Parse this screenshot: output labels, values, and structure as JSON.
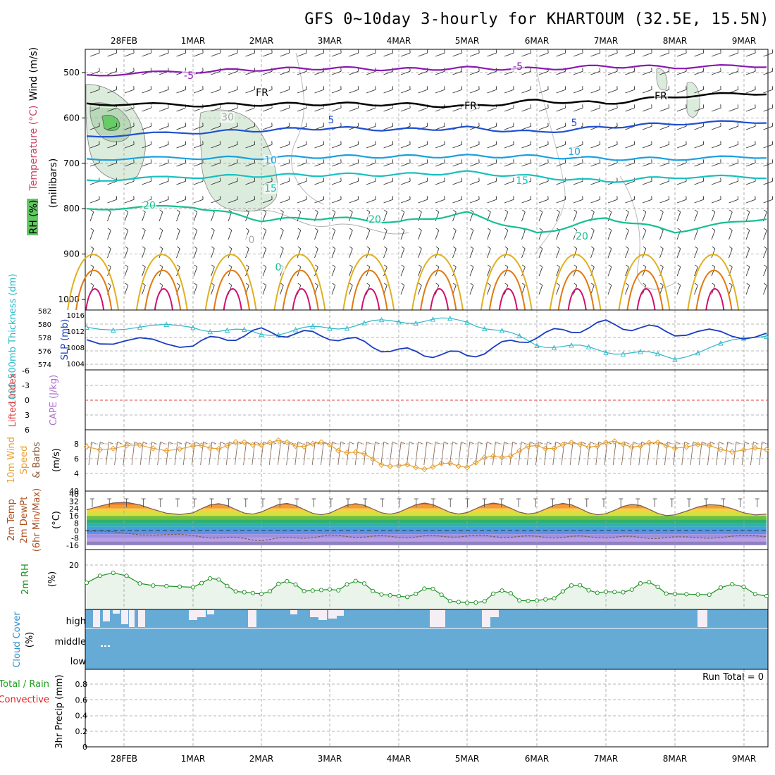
{
  "title": "GFS 0~10day 3-hourly for KHARTOUM (32.5E, 15.5N)",
  "dates": [
    "28FEB",
    "1MAR",
    "2MAR",
    "3MAR",
    "4MAR",
    "5MAR",
    "6MAR",
    "7MAR",
    "8MAR",
    "9MAR"
  ],
  "colors": {
    "panel_border": "#000000",
    "grid": "#a0a0a0",
    "isotherm_neg": "#8a1ab0",
    "isotherm_freeze": "#000000",
    "isotherm_5": "#1f4fd0",
    "isotherm_10": "#1aa0e0",
    "isotherm_15": "#19c0c0",
    "isotherm_20": "#16c090",
    "isotherm_25": "#e0b020",
    "isotherm_30": "#e07a10",
    "isotherm_35": "#d01070",
    "rh_shade": "#cde6cd",
    "thickness": "#2cb8c8",
    "slp": "#1a3cc0",
    "lifted_index": "#e04040",
    "wind_speed": "#e8a030",
    "rh2m": "#1a9020",
    "rh2m_fill": "#eaf4ea",
    "cloud": "#66aad6",
    "cloud_gap": "#f5eef5",
    "precip_total": "#20a020",
    "precip_conv": "#e02020"
  },
  "panels": {
    "upper_air": {
      "side_labels": {
        "rh": "RH (%)",
        "temperature": "Temperature (°C)",
        "wind": "Wind (m/s)"
      },
      "axis_label": "(millibars)",
      "pressure_ticks": [
        500,
        600,
        700,
        800,
        900,
        1000
      ],
      "contour_labels": [
        "-5",
        "-5",
        "FR",
        "FR",
        "FR",
        "5",
        "5",
        "10",
        "10",
        "15",
        "15",
        "20",
        "20",
        "20",
        "0",
        "30",
        "0"
      ]
    },
    "thickness_slp": {
      "label_thickness": "1000-500mb Thickness (dm)",
      "label_slp": "SLP (mb)",
      "thickness_ticks": [
        582,
        580,
        578,
        576,
        574
      ],
      "slp_ticks": [
        1016,
        1012,
        1008,
        1004
      ]
    },
    "cape_li": {
      "label_li": "Lifted Index",
      "label_cape": "CAPE (J/kg)",
      "ticks": [
        "-6",
        "-3",
        "0",
        "3",
        "6"
      ]
    },
    "wind10m": {
      "label_main": "10m Wind",
      "label_speed": "Speed",
      "label_barbs": "& Barbs",
      "unit": "(m/s)",
      "ticks": [
        "8",
        "6",
        "4"
      ]
    },
    "temp2m": {
      "label_temp": "2m Temp",
      "label_dewpt": "2m DewPt",
      "label_minmax": "(6hr Min/Max)",
      "unit": "(°C)",
      "ticks": [
        "40",
        "32",
        "24",
        "16",
        "8",
        "0",
        "-8",
        "-16"
      ]
    },
    "rh2m": {
      "label": "2m RH",
      "unit": "(%)",
      "ticks": [
        "20"
      ]
    },
    "cloud": {
      "label": "Cloud Cover",
      "unit": "(%)",
      "levels": [
        "high",
        "middle",
        "low"
      ]
    },
    "precip": {
      "label_total": "Total / Rain",
      "label_conv": "Convective",
      "axis_label": "3hr Precip (mm)",
      "run_total": "Run Total = 0",
      "ticks": [
        "0.8",
        "0.6",
        "0.4",
        "0.2",
        "0"
      ]
    }
  },
  "chart_data": [
    {
      "type": "line",
      "name": "upper-air isotherms",
      "ylabel": "(millibars)",
      "ylim": [
        450,
        1000
      ],
      "x": [
        "28FEB",
        "1MAR",
        "2MAR",
        "3MAR",
        "4MAR",
        "5MAR",
        "6MAR",
        "7MAR",
        "8MAR",
        "9MAR"
      ],
      "series": [
        {
          "name": "-5",
          "values": [
            505,
            498,
            493,
            490,
            493,
            490,
            492,
            486,
            488,
            485
          ]
        },
        {
          "name": "FR",
          "values": [
            568,
            572,
            570,
            569,
            570,
            575,
            562,
            568,
            552,
            545
          ]
        },
        {
          "name": "5",
          "values": [
            640,
            632,
            627,
            622,
            626,
            622,
            632,
            620,
            612,
            608
          ]
        },
        {
          "name": "10",
          "values": [
            690,
            688,
            688,
            685,
            685,
            684,
            685,
            690,
            690,
            685
          ]
        },
        {
          "name": "15",
          "values": [
            737,
            730,
            727,
            725,
            725,
            720,
            730,
            740,
            730,
            730
          ]
        },
        {
          "name": "20",
          "values": [
            800,
            795,
            825,
            820,
            830,
            810,
            855,
            820,
            850,
            820
          ]
        }
      ]
    },
    {
      "type": "line",
      "name": "thickness and slp",
      "x": [
        "28FEB",
        "1MAR",
        "2MAR",
        "3MAR",
        "4MAR",
        "5MAR",
        "6MAR",
        "7MAR",
        "8MAR",
        "9MAR"
      ],
      "series": [
        {
          "name": "1000-500mb Thickness (dm)",
          "values": [
            579.5,
            579.5,
            578.5,
            579.5,
            580.5,
            580.5,
            577.0,
            576.0,
            575.0,
            578.5
          ]
        },
        {
          "name": "SLP (mb)",
          "values": [
            1010,
            1009,
            1012,
            1011,
            1007,
            1006,
            1011,
            1014,
            1012,
            1011
          ]
        }
      ]
    },
    {
      "type": "line",
      "name": "lifted index",
      "x": [
        "28FEB",
        "1MAR",
        "2MAR",
        "3MAR",
        "4MAR",
        "5MAR",
        "6MAR",
        "7MAR",
        "8MAR",
        "9MAR"
      ],
      "ylim": [
        -6,
        6
      ],
      "series": [
        {
          "name": "Lifted Index",
          "values": [
            0,
            0,
            0,
            0,
            0,
            0,
            0,
            0,
            0,
            0
          ]
        }
      ]
    },
    {
      "type": "line",
      "name": "10m wind speed",
      "ylabel": "(m/s)",
      "ylim": [
        4,
        9
      ],
      "x": [
        "28FEB",
        "1MAR",
        "2MAR",
        "3MAR",
        "4MAR",
        "5MAR",
        "6MAR",
        "7MAR",
        "8MAR",
        "9MAR"
      ],
      "series": [
        {
          "name": "Speed",
          "values": [
            7.6,
            7.4,
            8.2,
            7.8,
            4.8,
            5.2,
            7.6,
            8.0,
            7.8,
            7.0
          ]
        }
      ]
    },
    {
      "type": "area",
      "name": "2m temperature",
      "ylabel": "(°C)",
      "ylim": [
        -16,
        40
      ],
      "x": [
        "28FEB",
        "1MAR",
        "2MAR",
        "3MAR",
        "4MAR",
        "5MAR",
        "6MAR",
        "7MAR",
        "8MAR",
        "9MAR"
      ],
      "series": [
        {
          "name": "2m Temp",
          "values": [
            26,
            23,
            24,
            23,
            24,
            24,
            24,
            23,
            22,
            23
          ]
        },
        {
          "name": "2m DewPt",
          "values": [
            -1,
            -6,
            -10,
            -6,
            -7,
            -6,
            -7,
            -7,
            -8,
            -6
          ]
        }
      ]
    },
    {
      "type": "line",
      "name": "2m relative humidity",
      "ylabel": "(%)",
      "ylim": [
        0,
        30
      ],
      "x": [
        "28FEB",
        "1MAR",
        "2MAR",
        "3MAR",
        "4MAR",
        "5MAR",
        "6MAR",
        "7MAR",
        "8MAR",
        "9MAR"
      ],
      "series": [
        {
          "name": "2m RH",
          "values": [
            12,
            10,
            7,
            9,
            6,
            3,
            4,
            8,
            7,
            6
          ]
        }
      ]
    },
    {
      "type": "bar",
      "name": "precipitation",
      "ylabel": "3hr Precip (mm)",
      "ylim": [
        0,
        1
      ],
      "x": [
        "28FEB",
        "1MAR",
        "2MAR",
        "3MAR",
        "4MAR",
        "5MAR",
        "6MAR",
        "7MAR",
        "8MAR",
        "9MAR"
      ],
      "series": [
        {
          "name": "Total / Rain",
          "values": [
            0,
            0,
            0,
            0,
            0,
            0,
            0,
            0,
            0,
            0
          ]
        }
      ]
    }
  ]
}
